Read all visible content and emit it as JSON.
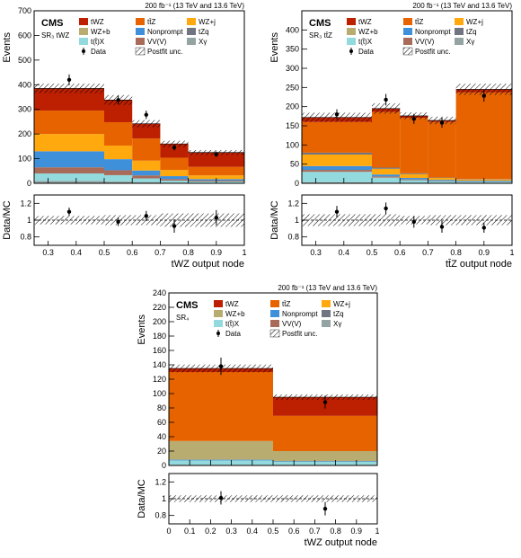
{
  "chart_data": [
    {
      "type": "bar",
      "stacked": true,
      "lumi": "200 fb⁻¹ (13 TeV and 13.6 TeV)",
      "experiment": "CMS",
      "region": "SR₃ tWZ",
      "ylabel": "Events",
      "xlabel": "tWZ output node",
      "ratio_ylabel": "Data/MC",
      "bin_edges": [
        0.25,
        0.5,
        0.6,
        0.7,
        0.8,
        1.0
      ],
      "ylim": [
        0,
        700
      ],
      "yticks": [
        "0",
        "100",
        "200",
        "300",
        "400",
        "500",
        "600",
        "700"
      ],
      "xticks": [
        "0.3",
        "0.4",
        "0.5",
        "0.6",
        "0.7",
        "0.8",
        "0.9",
        "1"
      ],
      "ratio_ylim": [
        0.7,
        1.3
      ],
      "ratio_yticks": [
        "0.8",
        "1",
        "1.2"
      ],
      "legend": [
        "tWZ",
        "tt̄Z",
        "WZ+j",
        "WZ+b",
        "Nonprompt",
        "tZq",
        "t(t̄)X",
        "VV(V)",
        "Xγ",
        "Data",
        "Postfit unc."
      ],
      "series": [
        {
          "name": "Xγ",
          "color": "#94a4a2",
          "values": [
            10,
            8,
            5,
            3,
            2
          ]
        },
        {
          "name": "t(t̄)X",
          "color": "#92dadd",
          "values": [
            30,
            25,
            15,
            8,
            5
          ]
        },
        {
          "name": "VV(V)",
          "color": "#a96b59",
          "values": [
            25,
            20,
            12,
            6,
            4
          ]
        },
        {
          "name": "Nonprompt",
          "color": "#3f90da",
          "values": [
            65,
            45,
            20,
            12,
            6
          ]
        },
        {
          "name": "WZ+j",
          "color": "#ffa90e",
          "values": [
            70,
            55,
            40,
            25,
            15
          ]
        },
        {
          "name": "tZq",
          "color": "#717581",
          "values": [
            0,
            0,
            0,
            0,
            0
          ]
        },
        {
          "name": "tt̄Z",
          "color": "#e76300",
          "values": [
            95,
            95,
            90,
            50,
            35
          ]
        },
        {
          "name": "WZ+b",
          "color": "#b9ac70",
          "values": [
            0,
            0,
            0,
            0,
            0
          ]
        },
        {
          "name": "tWZ",
          "color": "#bd1f01",
          "values": [
            90,
            90,
            60,
            56,
            58
          ]
        }
      ],
      "data_points": [
        {
          "x": 0.375,
          "y": 420,
          "yerr": 22
        },
        {
          "x": 0.55,
          "y": 338,
          "yerr": 18
        },
        {
          "x": 0.65,
          "y": 278,
          "yerr": 17
        },
        {
          "x": 0.75,
          "y": 145,
          "yerr": 12
        },
        {
          "x": 0.9,
          "y": 118,
          "yerr": 11
        }
      ],
      "ratio_points": [
        {
          "x": 0.375,
          "y": 1.1,
          "yerr": 0.05
        },
        {
          "x": 0.55,
          "y": 0.98,
          "yerr": 0.05
        },
        {
          "x": 0.65,
          "y": 1.05,
          "yerr": 0.06
        },
        {
          "x": 0.75,
          "y": 0.93,
          "yerr": 0.08
        },
        {
          "x": 0.9,
          "y": 1.03,
          "yerr": 0.09
        }
      ],
      "ratio_unc": [
        0.05,
        0.06,
        0.06,
        0.08,
        0.08
      ]
    },
    {
      "type": "bar",
      "stacked": true,
      "lumi": "200 fb⁻¹ (13 TeV and 13.6 TeV)",
      "experiment": "CMS",
      "region": "SR₃ tt̄Z",
      "ylabel": "Events",
      "xlabel": "tt̄Z output node",
      "ratio_ylabel": "Data/MC",
      "bin_edges": [
        0.25,
        0.5,
        0.6,
        0.7,
        0.8,
        1.0
      ],
      "ylim": [
        0,
        450
      ],
      "yticks": [
        "0",
        "50",
        "100",
        "150",
        "200",
        "250",
        "300",
        "350",
        "400"
      ],
      "xticks": [
        "0.3",
        "0.4",
        "0.5",
        "0.6",
        "0.7",
        "0.8",
        "0.9",
        "1"
      ],
      "ratio_ylim": [
        0.7,
        1.3
      ],
      "ratio_yticks": [
        "0.8",
        "1",
        "1.2"
      ],
      "legend": [
        "tWZ",
        "tt̄Z",
        "WZ+j",
        "WZ+b",
        "Nonprompt",
        "tZq",
        "t(t̄)X",
        "VV(V)",
        "Xγ",
        "Data",
        "Postfit unc."
      ],
      "series": [
        {
          "name": "Xγ",
          "color": "#94a4a2",
          "values": [
            3,
            2,
            1,
            1,
            1
          ]
        },
        {
          "name": "t(t̄)X",
          "color": "#92dadd",
          "values": [
            27,
            13,
            7,
            4,
            3
          ]
        },
        {
          "name": "VV(V)",
          "color": "#a96b59",
          "values": [
            5,
            3,
            2,
            1,
            1
          ]
        },
        {
          "name": "Nonprompt",
          "color": "#3f90da",
          "values": [
            10,
            5,
            4,
            3,
            2
          ]
        },
        {
          "name": "WZ+j",
          "color": "#ffa90e",
          "values": [
            30,
            15,
            10,
            5,
            3
          ]
        },
        {
          "name": "tZq",
          "color": "#717581",
          "values": [
            5,
            3,
            2,
            1,
            1
          ]
        },
        {
          "name": "tt̄Z",
          "color": "#e76300",
          "values": [
            80,
            145,
            145,
            145,
            226
          ]
        },
        {
          "name": "WZ+b",
          "color": "#b9ac70",
          "values": [
            0,
            0,
            0,
            0,
            0
          ]
        },
        {
          "name": "tWZ",
          "color": "#bd1f01",
          "values": [
            12,
            9,
            5,
            4,
            8
          ]
        }
      ],
      "data_points": [
        {
          "x": 0.375,
          "y": 180,
          "yerr": 13
        },
        {
          "x": 0.55,
          "y": 218,
          "yerr": 15
        },
        {
          "x": 0.65,
          "y": 168,
          "yerr": 13
        },
        {
          "x": 0.75,
          "y": 158,
          "yerr": 13
        },
        {
          "x": 0.9,
          "y": 228,
          "yerr": 15
        }
      ],
      "ratio_points": [
        {
          "x": 0.375,
          "y": 1.1,
          "yerr": 0.07
        },
        {
          "x": 0.55,
          "y": 1.14,
          "yerr": 0.07
        },
        {
          "x": 0.65,
          "y": 0.98,
          "yerr": 0.07
        },
        {
          "x": 0.75,
          "y": 0.92,
          "yerr": 0.07
        },
        {
          "x": 0.9,
          "y": 0.91,
          "yerr": 0.06
        }
      ],
      "ratio_unc": [
        0.07,
        0.07,
        0.05,
        0.06,
        0.06
      ]
    },
    {
      "type": "bar",
      "stacked": true,
      "lumi": "200 fb⁻¹ (13 TeV and 13.6 TeV)",
      "experiment": "CMS",
      "region": "SR₄",
      "ylabel": "Events",
      "xlabel": "tWZ output node",
      "ratio_ylabel": "Data/MC",
      "bin_edges": [
        0,
        0.5,
        1.0
      ],
      "ylim": [
        0,
        240
      ],
      "yticks": [
        "0",
        "20",
        "40",
        "60",
        "80",
        "100",
        "120",
        "140",
        "160",
        "180",
        "200",
        "220",
        "240"
      ],
      "xticks": [
        "0",
        "0.1",
        "0.2",
        "0.3",
        "0.4",
        "0.5",
        "0.6",
        "0.7",
        "0.8",
        "0.9",
        "1"
      ],
      "ratio_ylim": [
        0.7,
        1.3
      ],
      "ratio_yticks": [
        "0.8",
        "1",
        "1.2"
      ],
      "legend": [
        "tWZ",
        "tt̄Z",
        "WZ+j",
        "WZ+b",
        "Nonprompt",
        "tZq",
        "t(t̄)X",
        "VV(V)",
        "Xγ",
        "Data",
        "Postfit unc."
      ],
      "series": [
        {
          "name": "Xγ",
          "color": "#94a4a2",
          "values": [
            1,
            1
          ]
        },
        {
          "name": "t(t̄)X",
          "color": "#92dadd",
          "values": [
            6,
            4
          ]
        },
        {
          "name": "Nonprompt",
          "color": "#3f90da",
          "values": [
            1,
            1
          ]
        },
        {
          "name": "WZ+b",
          "color": "#b9ac70",
          "values": [
            26,
            14
          ]
        },
        {
          "name": "tt̄Z",
          "color": "#e76300",
          "values": [
            96,
            49
          ]
        },
        {
          "name": "tWZ",
          "color": "#bd1f01",
          "values": [
            5,
            26
          ]
        }
      ],
      "data_points": [
        {
          "x": 0.25,
          "y": 138,
          "yerr": 12
        },
        {
          "x": 0.75,
          "y": 88,
          "yerr": 9
        }
      ],
      "ratio_points": [
        {
          "x": 0.25,
          "y": 1.01,
          "yerr": 0.08
        },
        {
          "x": 0.75,
          "y": 0.88,
          "yerr": 0.08
        }
      ],
      "ratio_unc": [
        0.04,
        0.04
      ]
    }
  ]
}
